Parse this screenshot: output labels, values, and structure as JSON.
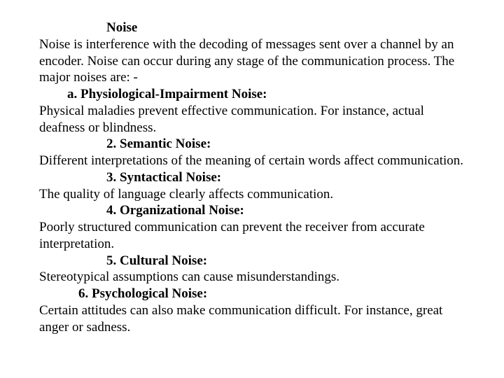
{
  "title": "Noise",
  "intro": "Noise is interference with the decoding of messages sent over a channel by an encoder. Noise can occur during any stage of the communication process. The major noises are: -",
  "items": [
    {
      "label": "a. Physiological-Impairment Noise:",
      "body": "Physical maladies prevent effective communication. For instance, actual deafness or blindness."
    },
    {
      "label": "2.   Semantic Noise:",
      "body": "Different interpretations of the meaning of certain words affect communication."
    },
    {
      "label": "3.   Syntactical Noise:",
      "body": "The quality of language clearly affects communication."
    },
    {
      "label": "4.   Organizational Noise:",
      "body": "Poorly structured communication can prevent the receiver from accurate interpretation."
    },
    {
      "label": "5.   Cultural Noise:",
      "body": "Stereotypical assumptions can cause misunderstandings."
    },
    {
      "label": "6.   Psychological Noise:",
      "body": "Certain attitudes can also make communication difficult. For instance, great anger or sadness."
    }
  ]
}
